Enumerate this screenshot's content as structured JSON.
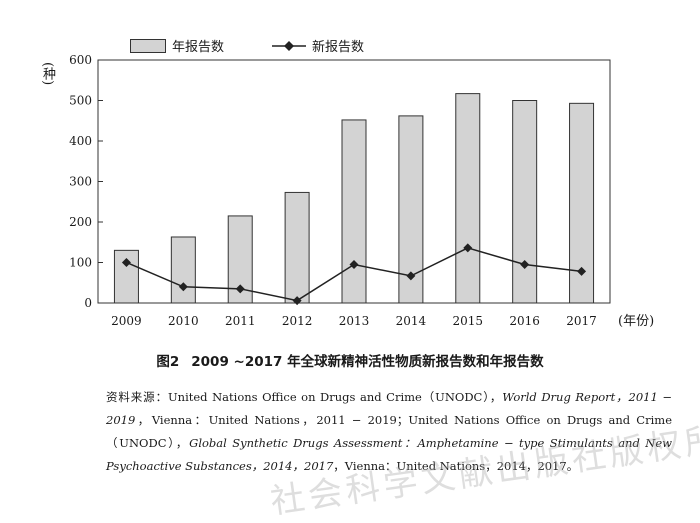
{
  "chart_data": {
    "type": "bar+line",
    "categories": [
      "2009",
      "2010",
      "2011",
      "2012",
      "2013",
      "2014",
      "2015",
      "2016",
      "2017"
    ],
    "series": [
      {
        "name": "年报告数",
        "kind": "bar",
        "values": [
          130,
          163,
          215,
          273,
          452,
          462,
          517,
          500,
          493
        ]
      },
      {
        "name": "新报告数",
        "kind": "line",
        "values": [
          100,
          40,
          35,
          6,
          95,
          67,
          136,
          95,
          78
        ]
      }
    ],
    "ylim": [
      0,
      600
    ],
    "yticks": [
      0,
      100,
      200,
      300,
      400,
      500,
      600
    ],
    "ylabel": "(种)",
    "xlabel": "(年份)",
    "grid": false,
    "legend_position": "top"
  },
  "caption": {
    "figure_no": "图2",
    "title": "2009 ~2017 年全球新精神活性物质新报告数和年报告数"
  },
  "source": {
    "prefix": "资料来源：United Nations Office on Drugs and Crime（UNODC），",
    "report1": "World Drug Report，2011 − 2019",
    "mid1": "，Vienna：United Nations，2011 − 2019；United Nations Office on Drugs and Crime（UNODC），",
    "report2": "Global Synthetic Drugs Assessment：Amphetamine − type Stimulants and New Psychoactive Substances，2014，2017",
    "suffix": "，Vienna：United Nations，2014，2017。"
  },
  "watermark": "社会科学文献出版社版权所有"
}
